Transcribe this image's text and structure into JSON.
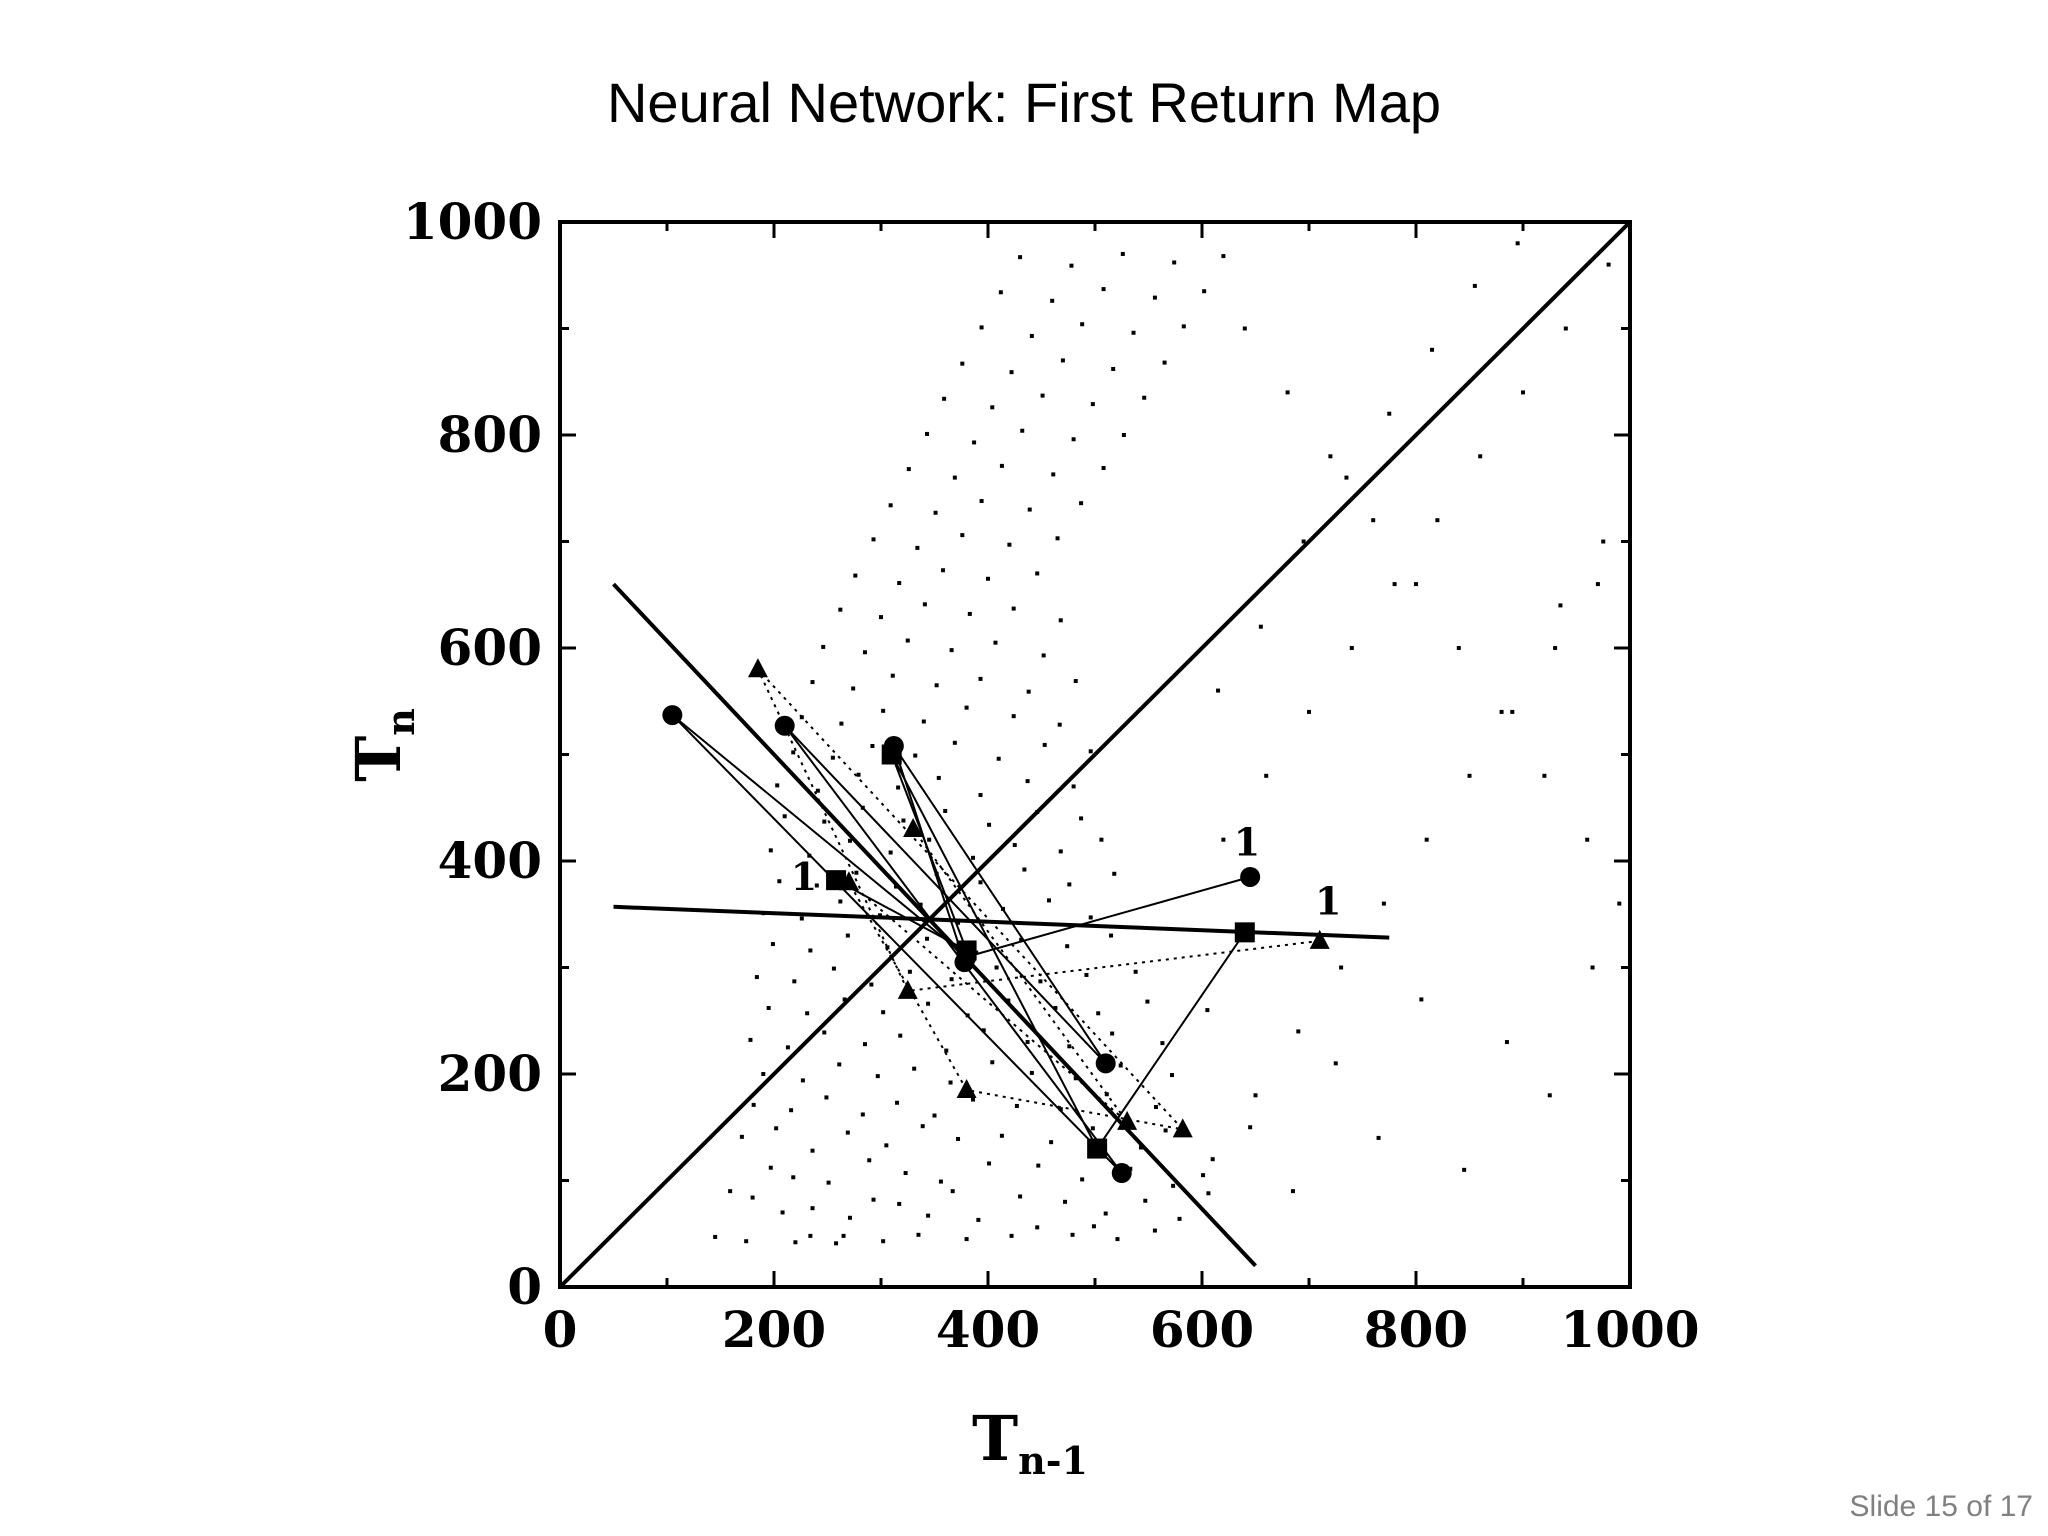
{
  "slide": {
    "title": "Neural Network: First Return Map",
    "footer": "Slide 15 of 17"
  },
  "chart_data": {
    "type": "scatter",
    "title": "",
    "xlabel": {
      "main": "T",
      "sub": "n-1"
    },
    "ylabel": {
      "main": "T",
      "sub": "n"
    },
    "xlim": [
      0,
      1000
    ],
    "ylim": [
      0,
      1000
    ],
    "xticks": [
      "0",
      "200",
      "400",
      "600",
      "800",
      "1000"
    ],
    "yticks": [
      "0",
      "200",
      "400",
      "600",
      "800",
      "1000"
    ],
    "grid": false,
    "legend": "none",
    "lines": [
      {
        "name": "identity",
        "points": [
          [
            0,
            0
          ],
          [
            1000,
            1000
          ]
        ]
      },
      {
        "name": "manifold-1",
        "points": [
          [
            50,
            660
          ],
          [
            650,
            20
          ]
        ]
      },
      {
        "name": "manifold-2",
        "points": [
          [
            50,
            357
          ],
          [
            775,
            328
          ]
        ]
      }
    ],
    "point_labels": [
      {
        "text": "1",
        "x": 228,
        "y": 373
      },
      {
        "text": "1",
        "x": 642,
        "y": 405
      },
      {
        "text": "1",
        "x": 718,
        "y": 350
      }
    ],
    "series": [
      {
        "marker": "circle",
        "linestyle": "solid",
        "values": [
          [
            645,
            385
          ],
          [
            380,
            310
          ],
          [
            105,
            537
          ],
          [
            525,
            107
          ],
          [
            210,
            527
          ],
          [
            510,
            210
          ],
          [
            312,
            508
          ],
          [
            378,
            305
          ]
        ]
      },
      {
        "marker": "square",
        "linestyle": "solid",
        "values": [
          [
            258,
            382
          ],
          [
            380,
            316
          ],
          [
            310,
            500
          ],
          [
            502,
            130
          ],
          [
            640,
            333
          ]
        ]
      },
      {
        "marker": "triangle",
        "linestyle": "dotted",
        "values": [
          [
            710,
            325
          ],
          [
            325,
            278
          ],
          [
            185,
            580
          ],
          [
            582,
            148
          ],
          [
            380,
            185
          ],
          [
            270,
            380
          ],
          [
            530,
            155
          ],
          [
            330,
            430
          ]
        ]
      }
    ],
    "background_points": [
      [
        145,
        47
      ],
      [
        174,
        43
      ],
      [
        220,
        42
      ],
      [
        234,
        48
      ],
      [
        258,
        41
      ],
      [
        265,
        48
      ],
      [
        302,
        43
      ],
      [
        335,
        49
      ],
      [
        380,
        45
      ],
      [
        422,
        48
      ],
      [
        446,
        56
      ],
      [
        479,
        49
      ],
      [
        499,
        57
      ],
      [
        521,
        45
      ],
      [
        556,
        53
      ],
      [
        180,
        84
      ],
      [
        208,
        70
      ],
      [
        236,
        74
      ],
      [
        271,
        65
      ],
      [
        293,
        82
      ],
      [
        317,
        78
      ],
      [
        344,
        67
      ],
      [
        367,
        90
      ],
      [
        391,
        63
      ],
      [
        430,
        85
      ],
      [
        472,
        80
      ],
      [
        510,
        69
      ],
      [
        547,
        81
      ],
      [
        579,
        64
      ],
      [
        606,
        88
      ],
      [
        159,
        90
      ],
      [
        197,
        112
      ],
      [
        218,
        103
      ],
      [
        251,
        98
      ],
      [
        289,
        119
      ],
      [
        323,
        107
      ],
      [
        356,
        99
      ],
      [
        401,
        116
      ],
      [
        447,
        114
      ],
      [
        488,
        101
      ],
      [
        533,
        111
      ],
      [
        573,
        95
      ],
      [
        601,
        105
      ],
      [
        170,
        141
      ],
      [
        202,
        149
      ],
      [
        236,
        128
      ],
      [
        269,
        145
      ],
      [
        305,
        133
      ],
      [
        339,
        151
      ],
      [
        372,
        139
      ],
      [
        413,
        142
      ],
      [
        459,
        136
      ],
      [
        498,
        149
      ],
      [
        543,
        131
      ],
      [
        566,
        147
      ],
      [
        181,
        171
      ],
      [
        216,
        166
      ],
      [
        249,
        178
      ],
      [
        283,
        162
      ],
      [
        315,
        173
      ],
      [
        350,
        161
      ],
      [
        386,
        176
      ],
      [
        427,
        170
      ],
      [
        468,
        167
      ],
      [
        511,
        181
      ],
      [
        557,
        169
      ],
      [
        190,
        200
      ],
      [
        227,
        194
      ],
      [
        261,
        209
      ],
      [
        297,
        198
      ],
      [
        331,
        205
      ],
      [
        365,
        192
      ],
      [
        404,
        211
      ],
      [
        441,
        201
      ],
      [
        482,
        196
      ],
      [
        524,
        208
      ],
      [
        572,
        199
      ],
      [
        178,
        232
      ],
      [
        213,
        225
      ],
      [
        247,
        239
      ],
      [
        285,
        228
      ],
      [
        318,
        236
      ],
      [
        361,
        222
      ],
      [
        396,
        241
      ],
      [
        437,
        230
      ],
      [
        476,
        226
      ],
      [
        516,
        238
      ],
      [
        563,
        229
      ],
      [
        195,
        262
      ],
      [
        231,
        257
      ],
      [
        266,
        270
      ],
      [
        302,
        258
      ],
      [
        344,
        266
      ],
      [
        381,
        255
      ],
      [
        419,
        269
      ],
      [
        463,
        262
      ],
      [
        503,
        257
      ],
      [
        549,
        268
      ],
      [
        184,
        291
      ],
      [
        219,
        287
      ],
      [
        256,
        299
      ],
      [
        291,
        284
      ],
      [
        327,
        296
      ],
      [
        366,
        289
      ],
      [
        408,
        300
      ],
      [
        449,
        287
      ],
      [
        492,
        293
      ],
      [
        538,
        296
      ],
      [
        199,
        322
      ],
      [
        234,
        316
      ],
      [
        269,
        330
      ],
      [
        306,
        319
      ],
      [
        343,
        327
      ],
      [
        389,
        314
      ],
      [
        431,
        326
      ],
      [
        474,
        320
      ],
      [
        515,
        330
      ],
      [
        190,
        351
      ],
      [
        226,
        346
      ],
      [
        262,
        362
      ],
      [
        299,
        349
      ],
      [
        337,
        359
      ],
      [
        372,
        342
      ],
      [
        414,
        355
      ],
      [
        457,
        363
      ],
      [
        496,
        347
      ],
      [
        205,
        381
      ],
      [
        240,
        377
      ],
      [
        277,
        389
      ],
      [
        314,
        376
      ],
      [
        352,
        388
      ],
      [
        393,
        380
      ],
      [
        434,
        392
      ],
      [
        476,
        378
      ],
      [
        518,
        388
      ],
      [
        197,
        410
      ],
      [
        233,
        405
      ],
      [
        271,
        419
      ],
      [
        309,
        408
      ],
      [
        345,
        420
      ],
      [
        386,
        403
      ],
      [
        425,
        415
      ],
      [
        468,
        409
      ],
      [
        506,
        420
      ],
      [
        210,
        442
      ],
      [
        247,
        437
      ],
      [
        283,
        450
      ],
      [
        321,
        438
      ],
      [
        360,
        447
      ],
      [
        401,
        434
      ],
      [
        446,
        446
      ],
      [
        487,
        440
      ],
      [
        203,
        471
      ],
      [
        241,
        466
      ],
      [
        279,
        481
      ],
      [
        316,
        469
      ],
      [
        354,
        478
      ],
      [
        393,
        462
      ],
      [
        437,
        475
      ],
      [
        480,
        470
      ],
      [
        218,
        502
      ],
      [
        255,
        497
      ],
      [
        292,
        508
      ],
      [
        332,
        499
      ],
      [
        369,
        511
      ],
      [
        410,
        496
      ],
      [
        453,
        509
      ],
      [
        496,
        503
      ],
      [
        226,
        535
      ],
      [
        263,
        529
      ],
      [
        302,
        541
      ],
      [
        340,
        531
      ],
      [
        380,
        544
      ],
      [
        424,
        536
      ],
      [
        467,
        528
      ],
      [
        236,
        568
      ],
      [
        274,
        562
      ],
      [
        311,
        574
      ],
      [
        352,
        565
      ],
      [
        393,
        571
      ],
      [
        438,
        559
      ],
      [
        482,
        569
      ],
      [
        246,
        601
      ],
      [
        285,
        596
      ],
      [
        325,
        607
      ],
      [
        366,
        598
      ],
      [
        407,
        605
      ],
      [
        452,
        593
      ],
      [
        262,
        636
      ],
      [
        300,
        629
      ],
      [
        341,
        641
      ],
      [
        383,
        632
      ],
      [
        424,
        637
      ],
      [
        468,
        626
      ],
      [
        276,
        668
      ],
      [
        317,
        661
      ],
      [
        358,
        673
      ],
      [
        400,
        665
      ],
      [
        446,
        670
      ],
      [
        293,
        702
      ],
      [
        334,
        694
      ],
      [
        376,
        706
      ],
      [
        420,
        697
      ],
      [
        465,
        703
      ],
      [
        309,
        734
      ],
      [
        351,
        727
      ],
      [
        394,
        738
      ],
      [
        439,
        730
      ],
      [
        487,
        736
      ],
      [
        326,
        768
      ],
      [
        369,
        760
      ],
      [
        413,
        771
      ],
      [
        461,
        763
      ],
      [
        508,
        769
      ],
      [
        343,
        801
      ],
      [
        387,
        793
      ],
      [
        432,
        804
      ],
      [
        480,
        796
      ],
      [
        527,
        800
      ],
      [
        359,
        834
      ],
      [
        404,
        826
      ],
      [
        451,
        837
      ],
      [
        498,
        829
      ],
      [
        546,
        835
      ],
      [
        376,
        867
      ],
      [
        422,
        859
      ],
      [
        470,
        870
      ],
      [
        517,
        862
      ],
      [
        565,
        868
      ],
      [
        394,
        901
      ],
      [
        441,
        893
      ],
      [
        488,
        904
      ],
      [
        536,
        896
      ],
      [
        583,
        902
      ],
      [
        412,
        934
      ],
      [
        460,
        926
      ],
      [
        508,
        937
      ],
      [
        556,
        929
      ],
      [
        602,
        935
      ],
      [
        430,
        967
      ],
      [
        478,
        959
      ],
      [
        526,
        970
      ],
      [
        574,
        962
      ],
      [
        620,
        968
      ],
      [
        610,
        120
      ],
      [
        650,
        180
      ],
      [
        690,
        240
      ],
      [
        730,
        300
      ],
      [
        770,
        360
      ],
      [
        810,
        420
      ],
      [
        850,
        480
      ],
      [
        890,
        540
      ],
      [
        930,
        600
      ],
      [
        970,
        660
      ],
      [
        605,
        260
      ],
      [
        645,
        150
      ],
      [
        685,
        90
      ],
      [
        725,
        210
      ],
      [
        765,
        140
      ],
      [
        805,
        270
      ],
      [
        845,
        110
      ],
      [
        885,
        230
      ],
      [
        925,
        180
      ],
      [
        965,
        300
      ],
      [
        620,
        420
      ],
      [
        660,
        480
      ],
      [
        700,
        540
      ],
      [
        740,
        600
      ],
      [
        780,
        660
      ],
      [
        820,
        720
      ],
      [
        860,
        780
      ],
      [
        900,
        840
      ],
      [
        940,
        900
      ],
      [
        980,
        960
      ],
      [
        615,
        560
      ],
      [
        655,
        620
      ],
      [
        695,
        700
      ],
      [
        735,
        760
      ],
      [
        775,
        820
      ],
      [
        815,
        880
      ],
      [
        855,
        940
      ],
      [
        895,
        980
      ],
      [
        935,
        640
      ],
      [
        975,
        700
      ],
      [
        640,
        900
      ],
      [
        680,
        840
      ],
      [
        720,
        780
      ],
      [
        760,
        720
      ],
      [
        800,
        660
      ],
      [
        840,
        600
      ],
      [
        880,
        540
      ],
      [
        920,
        480
      ],
      [
        960,
        420
      ],
      [
        990,
        360
      ]
    ]
  }
}
